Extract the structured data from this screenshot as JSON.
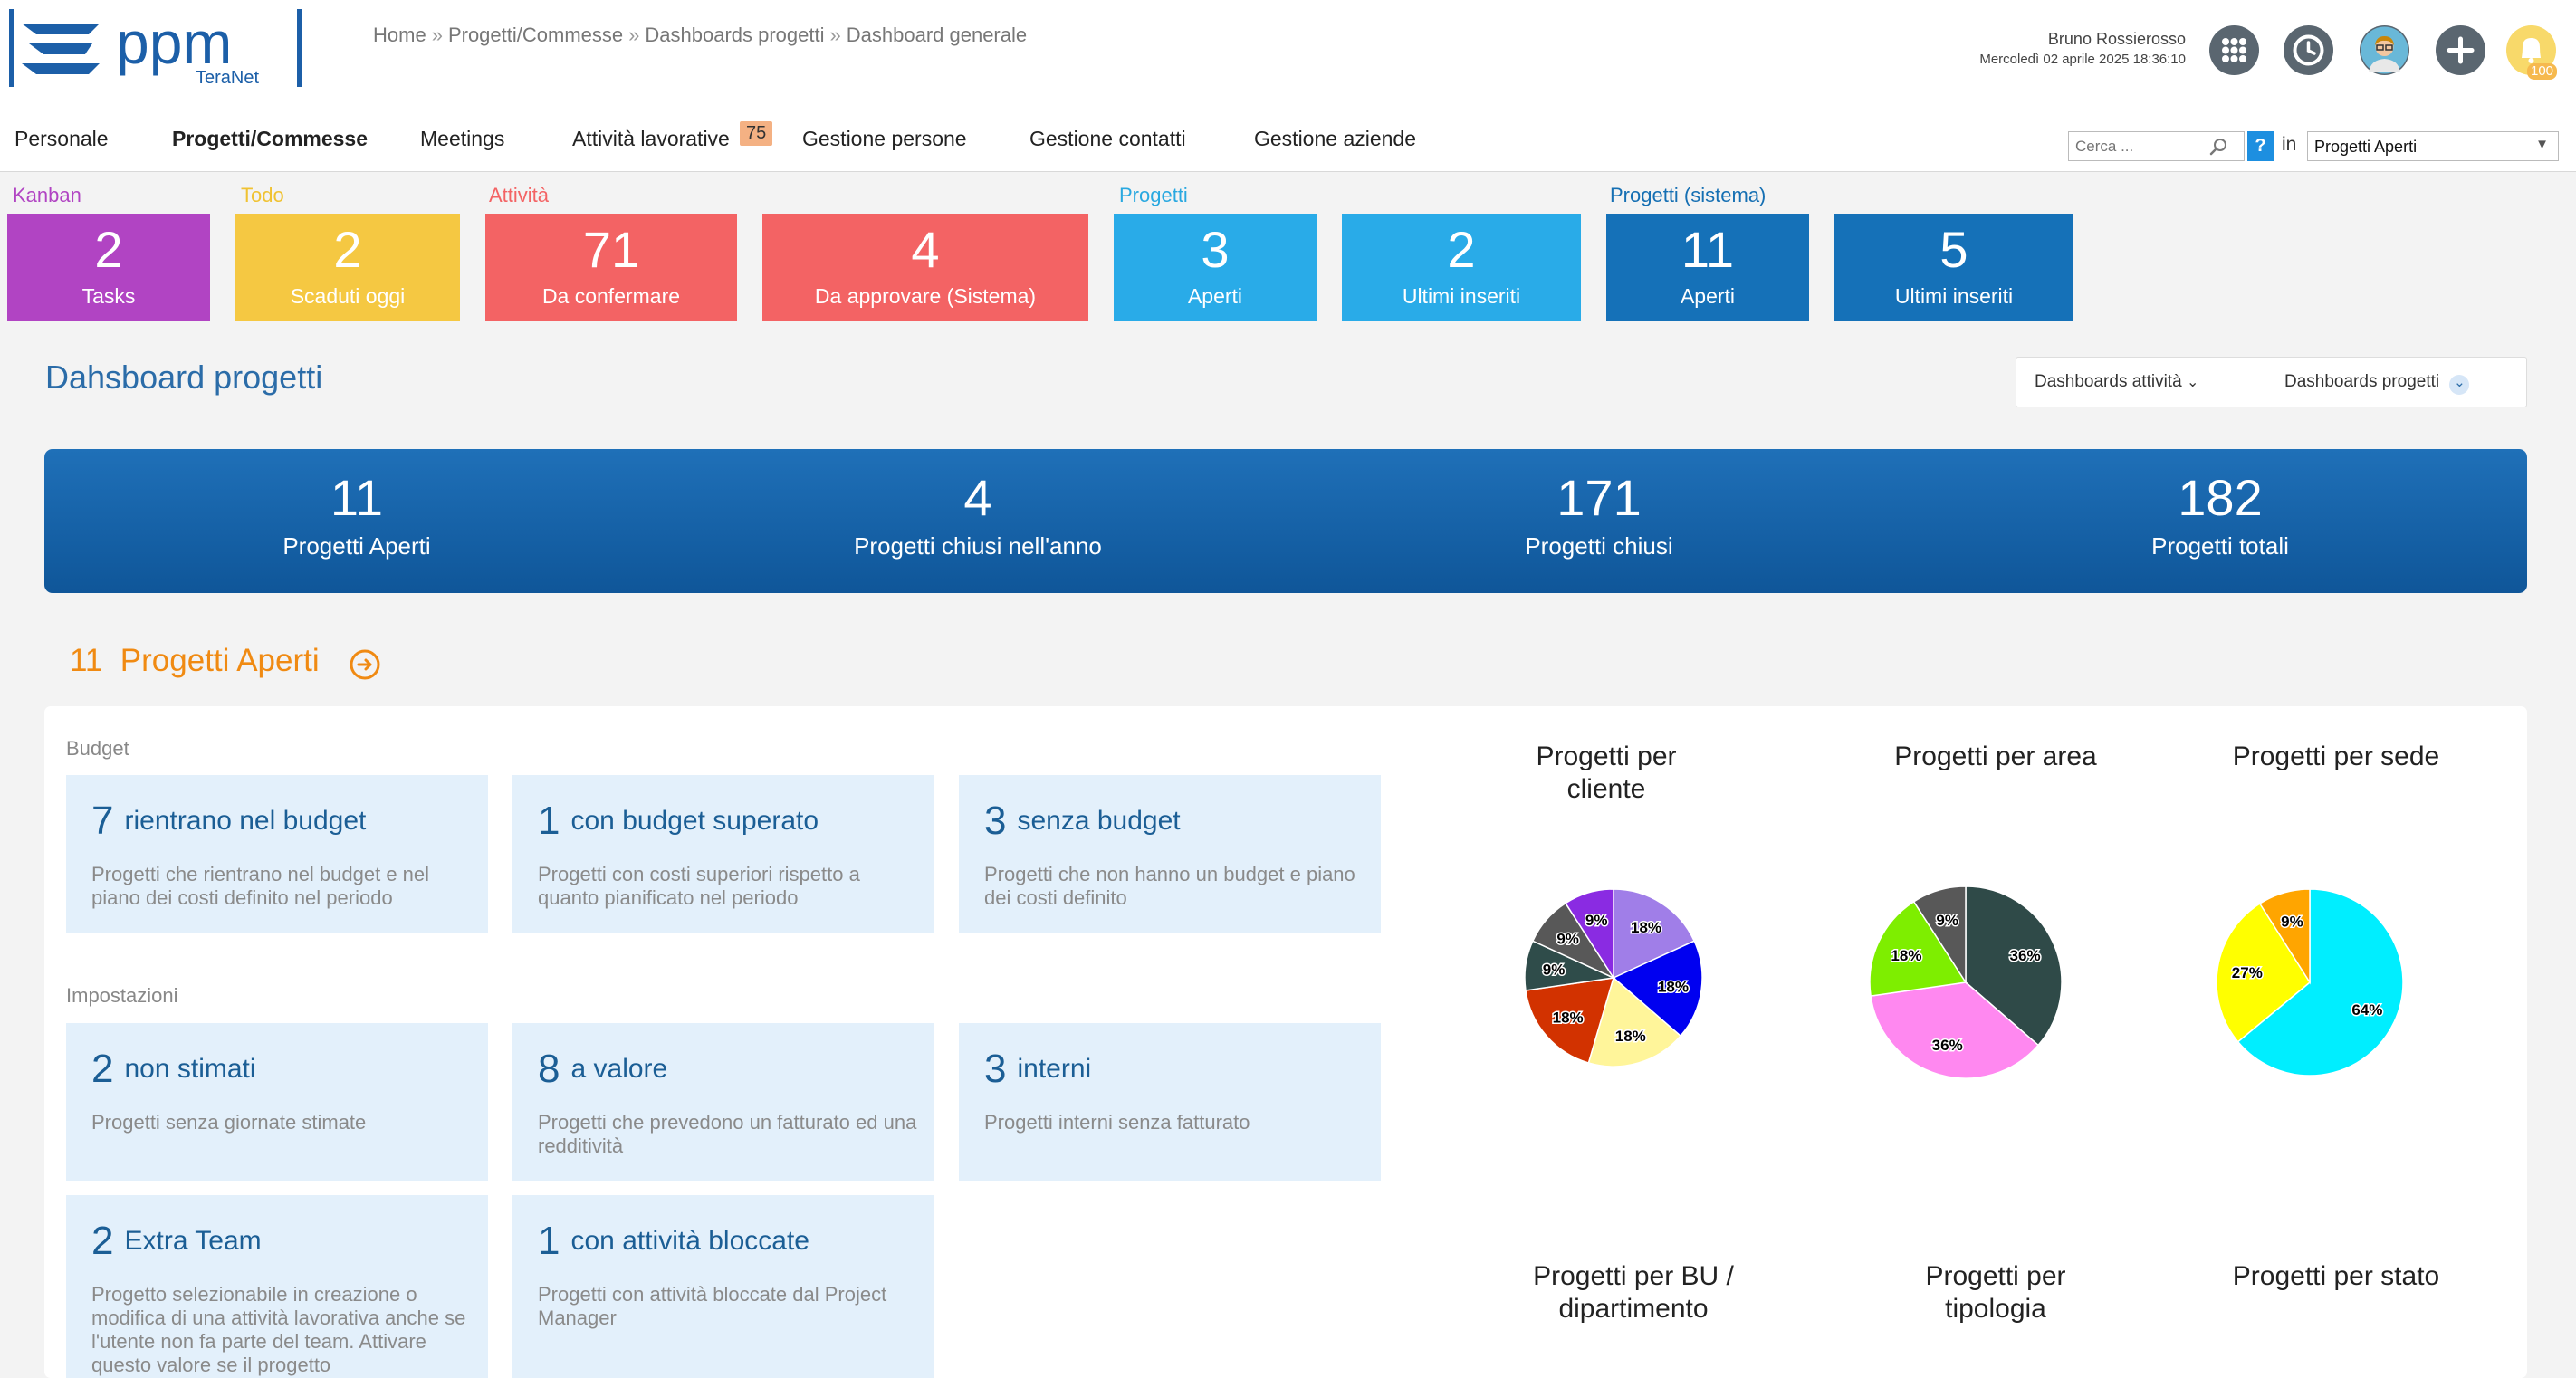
{
  "app": {
    "logo_text": "ppm",
    "logo_sub": "TeraNet"
  },
  "breadcrumb": [
    "Home",
    "Progetti/Commesse",
    "Dashboards progetti",
    "Dashboard generale"
  ],
  "user": {
    "name": "Bruno Rossierosso",
    "datetime": "Mercoledì 02 aprile 2025 18:36:10",
    "notifications": "100"
  },
  "nav": {
    "items": [
      "Personale",
      "Progetti/Commesse",
      "Meetings",
      "Attività lavorative",
      "Gestione persone",
      "Gestione contatti",
      "Gestione aziende"
    ],
    "active": "Progetti/Commesse",
    "activity_badge": "75"
  },
  "search": {
    "placeholder": "Cerca ...",
    "help": "?",
    "in_label": "in",
    "scope": "Progetti Aperti"
  },
  "tile_groups": [
    {
      "label": "Kanban",
      "color": "#b144c3"
    },
    {
      "label": "Todo",
      "color": "#f0c232"
    },
    {
      "label": "Attività",
      "color": "#f36364"
    },
    {
      "label": "Progetti",
      "color": "#29a8e0"
    },
    {
      "label": "Progetti (sistema)",
      "color": "#156fb3"
    }
  ],
  "tiles": [
    {
      "value": "2",
      "label": "Tasks",
      "color": "#b144c3"
    },
    {
      "value": "2",
      "label": "Scaduti oggi",
      "color": "#f5c842"
    },
    {
      "value": "71",
      "label": "Da confermare",
      "color": "#f36364"
    },
    {
      "value": "4",
      "label": "Da approvare (Sistema)",
      "color": "#f36364"
    },
    {
      "value": "3",
      "label": "Aperti",
      "color": "#29abe8"
    },
    {
      "value": "2",
      "label": "Ultimi inseriti",
      "color": "#29abe8"
    },
    {
      "value": "11",
      "label": "Aperti",
      "color": "#1571b8"
    },
    {
      "value": "5",
      "label": "Ultimi inseriti",
      "color": "#1571b8"
    }
  ],
  "dashboard": {
    "title": "Dahsboard progetti",
    "menu_activity": "Dashboards attività",
    "menu_projects": "Dashboards progetti"
  },
  "kpis": [
    {
      "value": "11",
      "label": "Progetti Aperti"
    },
    {
      "value": "4",
      "label": "Progetti chiusi nell'anno"
    },
    {
      "value": "171",
      "label": "Progetti chiusi"
    },
    {
      "value": "182",
      "label": "Progetti totali"
    }
  ],
  "section": {
    "count": "11",
    "title": "Progetti Aperti"
  },
  "budget": {
    "label": "Budget",
    "cards": [
      {
        "num": "7",
        "title": "rientrano nel budget",
        "desc": "Progetti che rientrano nel budget e nel piano dei costi definito nel periodo"
      },
      {
        "num": "1",
        "title": "con budget superato",
        "desc": "Progetti con costi superiori rispetto a quanto pianificato nel periodo"
      },
      {
        "num": "3",
        "title": "senza budget",
        "desc": "Progetti che non hanno un budget e piano dei costi definito"
      }
    ]
  },
  "settings": {
    "label": "Impostazioni",
    "cards": [
      {
        "num": "2",
        "title": "non stimati",
        "desc": "Progetti senza giornate stimate"
      },
      {
        "num": "8",
        "title": "a valore",
        "desc": "Progetti che prevedono un fatturato ed una redditività"
      },
      {
        "num": "3",
        "title": "interni",
        "desc": "Progetti interni senza fatturato"
      },
      {
        "num": "2",
        "title": "Extra Team",
        "desc": "Progetto selezionabile in creazione o modifica di una attività lavorativa anche se l'utente non fa parte del team. Attivare questo valore se il progetto"
      },
      {
        "num": "1",
        "title": "con attività bloccate",
        "desc": "Progetti con attività bloccate dal Project Manager"
      }
    ]
  },
  "pie_titles": {
    "cliente": "Progetti per cliente",
    "area": "Progetti per area",
    "sede": "Progetti per sede",
    "bu": "Progetti per BU / dipartimento",
    "tipologia": "Progetti per tipologia",
    "stato": "Progetti per stato"
  },
  "chart_data": [
    {
      "type": "pie",
      "title": "Progetti per cliente",
      "values": [
        18,
        18,
        18,
        18,
        9,
        9,
        9
      ],
      "labels": [
        "18%",
        "18%",
        "18%",
        "18%",
        "9%",
        "9%",
        "9%"
      ],
      "colors": [
        "#a07ee8",
        "#0000f0",
        "#fff59a",
        "#d23200",
        "#2f4c4a",
        "#585858",
        "#8a2be2"
      ]
    },
    {
      "type": "pie",
      "title": "Progetti per area",
      "values": [
        36,
        36,
        18,
        9
      ],
      "labels": [
        "36%",
        "36%",
        "18%",
        "9%"
      ],
      "colors": [
        "#2f4a48",
        "#ff88f0",
        "#7eee00",
        "#585858"
      ]
    },
    {
      "type": "pie",
      "title": "Progetti per sede",
      "values": [
        64,
        27,
        9
      ],
      "labels": [
        "64%",
        "27%",
        "9%"
      ],
      "colors": [
        "#00eeff",
        "#ffff00",
        "#ffa500"
      ]
    }
  ]
}
